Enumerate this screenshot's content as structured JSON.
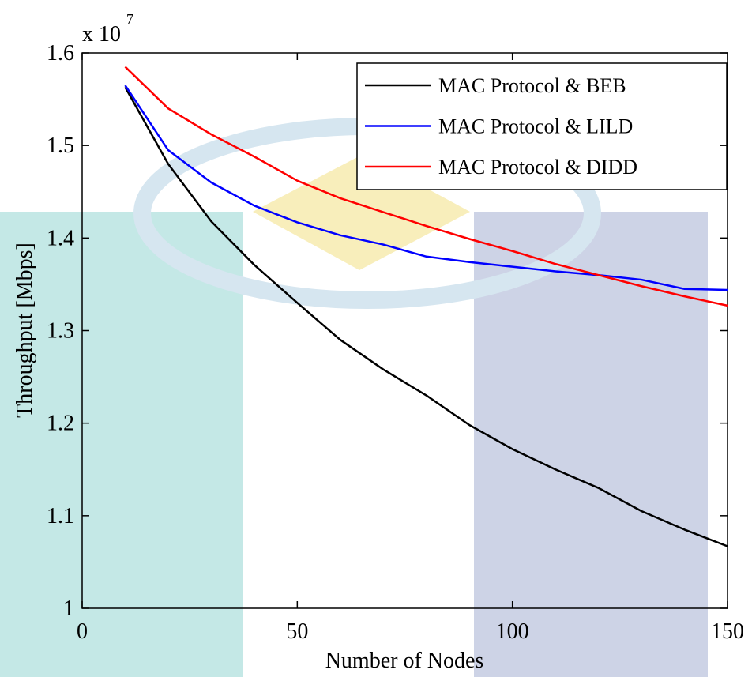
{
  "chart_data": {
    "type": "line",
    "xlabel": "Number of Nodes",
    "ylabel": "Throughput [Mbps]",
    "y_multiplier": "x 10",
    "y_multiplier_exponent": "7",
    "xlim": [
      0,
      150
    ],
    "xticks": [
      0,
      50,
      100,
      150
    ],
    "ylim": [
      1,
      1.6
    ],
    "yticks": [
      1,
      1.1,
      1.2,
      1.3,
      1.4,
      1.5,
      1.6
    ],
    "legend": "top-right",
    "x": [
      10,
      20,
      30,
      40,
      50,
      60,
      70,
      80,
      90,
      100,
      110,
      120,
      130,
      140,
      150
    ],
    "series": [
      {
        "name": "MAC Protocol & BEB",
        "color": "#000000",
        "values": [
          1.563,
          1.48,
          1.418,
          1.371,
          1.33,
          1.29,
          1.258,
          1.23,
          1.198,
          1.172,
          1.15,
          1.13,
          1.105,
          1.085,
          1.067
        ]
      },
      {
        "name": "MAC Protocol & LILD",
        "color": "#0000ff",
        "values": [
          1.565,
          1.495,
          1.46,
          1.435,
          1.417,
          1.403,
          1.393,
          1.38,
          1.374,
          1.369,
          1.364,
          1.36,
          1.355,
          1.345,
          1.344
        ]
      },
      {
        "name": "MAC Protocol & DIDD",
        "color": "#ff0000",
        "values": [
          1.585,
          1.54,
          1.512,
          1.488,
          1.462,
          1.443,
          1.428,
          1.413,
          1.399,
          1.386,
          1.372,
          1.36,
          1.348,
          1.337,
          1.327
        ]
      }
    ]
  }
}
